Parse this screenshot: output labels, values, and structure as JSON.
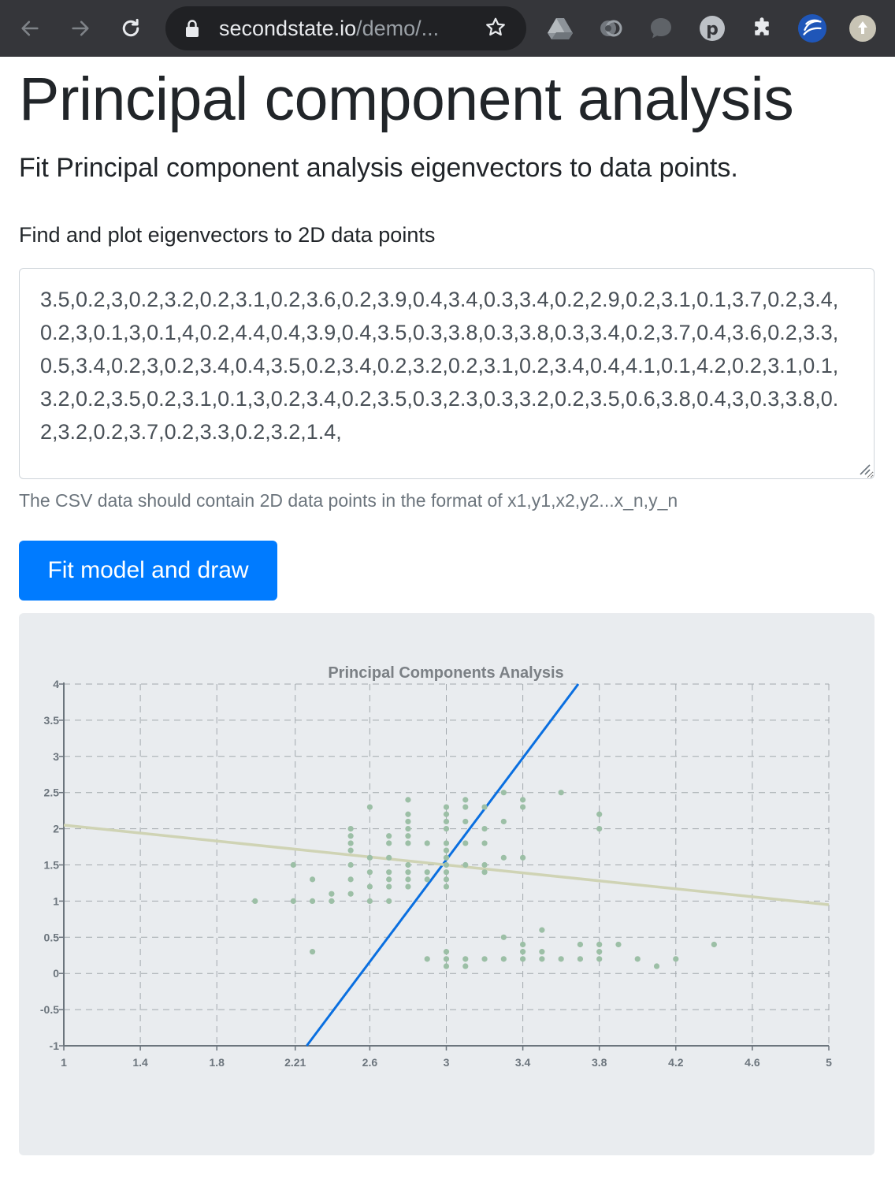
{
  "browser": {
    "url_host": "secondstate.io",
    "url_path": "/demo/...",
    "icons": [
      "back-icon",
      "forward-icon",
      "reload-icon",
      "lock-icon",
      "star-icon",
      "drive-icon",
      "extension-eye-icon",
      "chat-bubble-icon",
      "p-extension-icon",
      "puzzle-icon",
      "secondstate-icon",
      "profile-avatar-icon"
    ]
  },
  "page": {
    "title": "Principal component analysis",
    "lead": "Fit Principal component analysis eigenvectors to data points.",
    "form_label": "Find and plot eigenvectors to 2D data points",
    "csv_value": "3.5,0.2,3,0.2,3.2,0.2,3.1,0.2,3.6,0.2,3.9,0.4,3.4,0.3,3.4,0.2,2.9,0.2,3.1,0.1,3.7,0.2,3.4,0.2,3,0.1,3,0.1,4,0.2,4.4,0.4,3.9,0.4,3.5,0.3,3.8,0.3,3.8,0.3,3.4,0.2,3.7,0.4,3.6,0.2,3.3,0.5,3.4,0.2,3,0.2,3.4,0.4,3.5,0.2,3.4,0.2,3.2,0.2,3.1,0.2,3.4,0.4,4.1,0.1,4.2,0.2,3.1,0.1,3.2,0.2,3.5,0.2,3.1,0.1,3,0.2,3.4,0.2,3.5,0.3,2.3,0.3,3.2,0.2,3.5,0.6,3.8,0.4,3,0.3,3.8,0.2,3.2,0.2,3.7,0.2,3.3,0.2,3.2,1.4,",
    "help_text": "The CSV data should contain 2D data points in the format of x1,y1,x2,y2...x_n,y_n",
    "button_label": "Fit model and draw"
  },
  "chart_data": {
    "type": "scatter",
    "title": "Principal Components Analysis",
    "xlim": [
      1,
      5
    ],
    "ylim": [
      -1,
      4
    ],
    "x_ticks": [
      "1",
      "1.4",
      "1.8",
      "2.21",
      "2.6",
      "3",
      "3.4",
      "3.8",
      "4.2",
      "4.6",
      "5"
    ],
    "y_ticks": [
      "4",
      "3.5",
      "3",
      "2.5",
      "2",
      "1.5",
      "1",
      "0.5",
      "0",
      "-0.5",
      "-1"
    ],
    "y_tick_values": [
      4,
      3.5,
      3,
      2.5,
      2,
      1.5,
      1,
      0.5,
      0,
      -0.5,
      -1
    ],
    "grid": true,
    "colors": {
      "points": "#9cbfa6",
      "pc1": "#0a6fe0",
      "pc2": "#cfd3b4",
      "grid": "#a3a9ae",
      "axis": "#6c757d",
      "title": "#7b8085"
    },
    "points": [
      [
        2.0,
        1.0
      ],
      [
        2.2,
        1.0
      ],
      [
        2.2,
        1.5
      ],
      [
        2.3,
        1.0
      ],
      [
        2.3,
        1.3
      ],
      [
        2.3,
        0.3
      ],
      [
        2.4,
        1.0
      ],
      [
        2.4,
        1.1
      ],
      [
        2.5,
        1.1
      ],
      [
        2.5,
        1.3
      ],
      [
        2.5,
        1.5
      ],
      [
        2.5,
        1.7
      ],
      [
        2.5,
        1.8
      ],
      [
        2.5,
        1.9
      ],
      [
        2.5,
        2.0
      ],
      [
        2.6,
        1.0
      ],
      [
        2.6,
        1.2
      ],
      [
        2.6,
        1.4
      ],
      [
        2.6,
        1.6
      ],
      [
        2.6,
        2.3
      ],
      [
        2.7,
        1.0
      ],
      [
        2.7,
        1.2
      ],
      [
        2.7,
        1.3
      ],
      [
        2.7,
        1.4
      ],
      [
        2.7,
        1.6
      ],
      [
        2.7,
        1.8
      ],
      [
        2.7,
        1.9
      ],
      [
        2.8,
        1.2
      ],
      [
        2.8,
        1.3
      ],
      [
        2.8,
        1.4
      ],
      [
        2.8,
        1.5
      ],
      [
        2.8,
        1.8
      ],
      [
        2.8,
        1.9
      ],
      [
        2.8,
        2.0
      ],
      [
        2.8,
        2.1
      ],
      [
        2.8,
        2.2
      ],
      [
        2.8,
        2.4
      ],
      [
        2.9,
        1.3
      ],
      [
        2.9,
        1.4
      ],
      [
        2.9,
        1.8
      ],
      [
        2.9,
        0.2
      ],
      [
        3.0,
        1.2
      ],
      [
        3.0,
        1.3
      ],
      [
        3.0,
        1.4
      ],
      [
        3.0,
        1.5
      ],
      [
        3.0,
        1.6
      ],
      [
        3.0,
        1.7
      ],
      [
        3.0,
        1.8
      ],
      [
        3.0,
        2.0
      ],
      [
        3.0,
        2.1
      ],
      [
        3.0,
        2.2
      ],
      [
        3.0,
        2.3
      ],
      [
        3.0,
        0.1
      ],
      [
        3.0,
        0.2
      ],
      [
        3.0,
        0.3
      ],
      [
        3.1,
        1.5
      ],
      [
        3.1,
        1.8
      ],
      [
        3.1,
        2.1
      ],
      [
        3.1,
        2.3
      ],
      [
        3.1,
        2.4
      ],
      [
        3.1,
        0.1
      ],
      [
        3.1,
        0.2
      ],
      [
        3.2,
        1.4
      ],
      [
        3.2,
        1.5
      ],
      [
        3.2,
        1.8
      ],
      [
        3.2,
        2.0
      ],
      [
        3.2,
        2.3
      ],
      [
        3.2,
        0.2
      ],
      [
        3.3,
        1.6
      ],
      [
        3.3,
        2.1
      ],
      [
        3.3,
        2.5
      ],
      [
        3.3,
        0.2
      ],
      [
        3.3,
        0.5
      ],
      [
        3.4,
        1.6
      ],
      [
        3.4,
        2.3
      ],
      [
        3.4,
        2.4
      ],
      [
        3.4,
        0.2
      ],
      [
        3.4,
        0.3
      ],
      [
        3.4,
        0.4
      ],
      [
        3.5,
        0.2
      ],
      [
        3.5,
        0.3
      ],
      [
        3.5,
        0.6
      ],
      [
        3.6,
        0.2
      ],
      [
        3.6,
        2.5
      ],
      [
        3.7,
        0.2
      ],
      [
        3.7,
        0.4
      ],
      [
        3.8,
        0.2
      ],
      [
        3.8,
        0.3
      ],
      [
        3.8,
        0.4
      ],
      [
        3.8,
        2.0
      ],
      [
        3.8,
        2.2
      ],
      [
        3.9,
        0.4
      ],
      [
        4.0,
        0.2
      ],
      [
        4.1,
        0.1
      ],
      [
        4.2,
        0.2
      ],
      [
        4.4,
        0.4
      ]
    ],
    "components": [
      {
        "from": [
          2.27,
          -1.0
        ],
        "to": [
          3.69,
          4.0
        ]
      },
      {
        "from": [
          1.0,
          2.05
        ],
        "to": [
          5.0,
          0.95
        ]
      }
    ]
  }
}
